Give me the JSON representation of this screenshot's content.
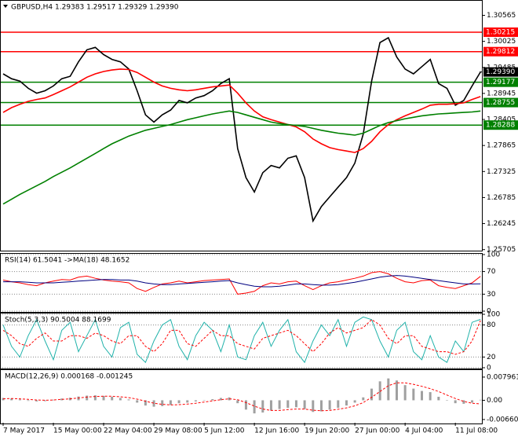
{
  "chart_data": [
    {
      "type": "line",
      "title": "GBPUSD,H4  1.29383 1.29517 1.29329 1.29390",
      "categories": [
        "7 May 2017",
        null,
        null,
        null,
        null,
        null,
        "15 May 00:00",
        null,
        null,
        null,
        null,
        null,
        "22 May 04:00",
        null,
        null,
        null,
        null,
        null,
        "29 May 08:00",
        null,
        null,
        null,
        null,
        null,
        "5 Jun 12:00",
        null,
        null,
        null,
        null,
        null,
        "12 Jun 16:00",
        null,
        null,
        null,
        null,
        null,
        "19 Jun 20:00",
        null,
        null,
        null,
        null,
        null,
        "27 Jun 00:00",
        null,
        null,
        null,
        null,
        null,
        "4 Jul 04:00",
        null,
        null,
        null,
        null,
        null,
        "11 Jul 08:00",
        null,
        null,
        null
      ],
      "ylim": [
        1.257,
        1.3085
      ],
      "yticks": [
        1.30565,
        1.30025,
        1.29485,
        1.28945,
        1.28405,
        1.27865,
        1.27325,
        1.26785,
        1.26245,
        1.25705
      ],
      "grid": false,
      "levels": [
        {
          "value": 1.30215,
          "color": "#ff0000"
        },
        {
          "value": 1.29812,
          "color": "#ff0000"
        },
        {
          "value": 1.29177,
          "color": "#008000"
        },
        {
          "value": 1.28755,
          "color": "#008000"
        },
        {
          "value": 1.28288,
          "color": "#008000"
        }
      ],
      "last": {
        "value": 1.2939,
        "label": "1.29390"
      },
      "series": [
        {
          "color": "#000000",
          "values": [
            1.2935,
            1.2925,
            1.292,
            1.2905,
            1.2895,
            1.29,
            1.291,
            1.2925,
            1.293,
            1.296,
            1.2985,
            1.299,
            1.2975,
            1.2965,
            1.296,
            1.2945,
            1.29,
            1.285,
            1.2835,
            1.285,
            1.286,
            1.288,
            1.2875,
            1.2885,
            1.289,
            1.29,
            1.2915,
            1.2925,
            1.278,
            1.272,
            1.269,
            1.273,
            1.2745,
            1.274,
            1.276,
            1.2765,
            1.272,
            1.263,
            1.266,
            1.268,
            1.27,
            1.272,
            1.275,
            1.281,
            1.292,
            1.3,
            1.301,
            1.297,
            1.2945,
            1.2935,
            1.295,
            1.2965,
            1.2915,
            1.2905,
            1.287,
            1.288,
            1.291,
            1.2939
          ]
        },
        {
          "color": "#ff0000",
          "values": [
            1.2855,
            1.2865,
            1.2872,
            1.2878,
            1.2882,
            1.2885,
            1.2892,
            1.29,
            1.2908,
            1.2918,
            1.2928,
            1.2935,
            1.294,
            1.2943,
            1.2945,
            1.2944,
            1.2938,
            1.2928,
            1.2918,
            1.291,
            1.2905,
            1.2902,
            1.29,
            1.2902,
            1.2905,
            1.2908,
            1.291,
            1.2912,
            1.2895,
            1.2875,
            1.2858,
            1.2846,
            1.284,
            1.2835,
            1.283,
            1.2825,
            1.2815,
            1.28,
            1.279,
            1.2782,
            1.2778,
            1.2775,
            1.2772,
            1.278,
            1.2795,
            1.2815,
            1.283,
            1.284,
            1.2848,
            1.2855,
            1.2862,
            1.287,
            1.2872,
            1.2872,
            1.2873,
            1.2875,
            1.2882,
            1.2888
          ]
        },
        {
          "color": "#008000",
          "values": [
            1.2665,
            1.2675,
            1.2685,
            1.2694,
            1.2703,
            1.2712,
            1.2722,
            1.2731,
            1.274,
            1.275,
            1.276,
            1.277,
            1.278,
            1.279,
            1.2798,
            1.2806,
            1.2812,
            1.2818,
            1.2822,
            1.2826,
            1.283,
            1.2835,
            1.284,
            1.2844,
            1.2848,
            1.2852,
            1.2855,
            1.2858,
            1.2855,
            1.285,
            1.2845,
            1.284,
            1.2835,
            1.2832,
            1.283,
            1.2828,
            1.2826,
            1.2822,
            1.2818,
            1.2815,
            1.2812,
            1.281,
            1.2808,
            1.2812,
            1.282,
            1.2828,
            1.2834,
            1.2838,
            1.2842,
            1.2845,
            1.2848,
            1.285,
            1.2852,
            1.2853,
            1.2854,
            1.2855,
            1.2856,
            1.2858
          ]
        }
      ]
    },
    {
      "type": "line",
      "title": "RSI(14) 61.5041 ->MA(18) 48.1652",
      "ylim": [
        0,
        100
      ],
      "yticks": [
        100,
        70,
        30,
        0
      ],
      "grid": true,
      "series": [
        {
          "color": "#ff0000",
          "values": [
            55,
            52,
            50,
            47,
            45,
            50,
            53,
            56,
            55,
            60,
            62,
            58,
            55,
            53,
            52,
            50,
            40,
            35,
            42,
            48,
            50,
            53,
            50,
            52,
            54,
            55,
            56,
            57,
            30,
            32,
            35,
            45,
            50,
            48,
            52,
            53,
            45,
            38,
            45,
            50,
            52,
            55,
            58,
            62,
            68,
            70,
            66,
            58,
            52,
            50,
            54,
            55,
            45,
            42,
            40,
            45,
            50,
            61.5
          ]
        },
        {
          "color": "#000080",
          "values": [
            52,
            52,
            52,
            51,
            50,
            50,
            50,
            51,
            52,
            53,
            54,
            55,
            56,
            56,
            55,
            55,
            53,
            50,
            48,
            47,
            47,
            48,
            49,
            50,
            51,
            52,
            53,
            54,
            50,
            47,
            44,
            43,
            43,
            44,
            46,
            48,
            48,
            47,
            46,
            46,
            47,
            49,
            51,
            54,
            57,
            60,
            62,
            63,
            62,
            60,
            58,
            56,
            54,
            52,
            50,
            48,
            48,
            48.2
          ]
        }
      ]
    },
    {
      "type": "line",
      "title": "Stoch(5,3,3) 90.5004 88.1699",
      "ylim": [
        0,
        100
      ],
      "yticks": [
        100,
        80,
        20,
        0
      ],
      "grid": true,
      "series": [
        {
          "color": "#20b2aa",
          "values": [
            80,
            40,
            20,
            60,
            90,
            50,
            15,
            70,
            85,
            30,
            60,
            90,
            40,
            20,
            75,
            85,
            25,
            10,
            50,
            80,
            90,
            40,
            15,
            60,
            85,
            70,
            30,
            80,
            20,
            15,
            60,
            85,
            40,
            70,
            90,
            30,
            10,
            50,
            80,
            60,
            90,
            40,
            85,
            95,
            90,
            50,
            20,
            70,
            85,
            30,
            15,
            60,
            20,
            10,
            50,
            30,
            85,
            90.5
          ]
        },
        {
          "color": "#ff0000",
          "dash": true,
          "values": [
            70,
            60,
            45,
            40,
            55,
            65,
            50,
            50,
            60,
            60,
            55,
            65,
            60,
            50,
            45,
            60,
            60,
            40,
            30,
            45,
            70,
            70,
            45,
            40,
            55,
            70,
            60,
            60,
            45,
            40,
            35,
            55,
            60,
            65,
            70,
            60,
            45,
            30,
            45,
            65,
            75,
            65,
            70,
            75,
            90,
            80,
            55,
            45,
            60,
            60,
            40,
            35,
            30,
            30,
            25,
            30,
            50,
            88.2
          ]
        }
      ]
    },
    {
      "type": "bar",
      "title": "MACD(12,26,9) 0.000168 -0.001245",
      "ylim": [
        -0.0077,
        0.0101
      ],
      "yticks": [
        0.007961,
        {
          "value": 0,
          "label": "0.00"
        },
        -0.006601
      ],
      "grid": false,
      "series": [
        {
          "color": "#a0a0a0",
          "type": "bar",
          "values": [
            0.0008,
            0.0006,
            0.0003,
            -0.0002,
            -0.0004,
            -0.0003,
            0.0002,
            0.0006,
            0.0009,
            0.0013,
            0.0016,
            0.0017,
            0.0015,
            0.0012,
            0.0008,
            0.0003,
            -0.0008,
            -0.0018,
            -0.0022,
            -0.002,
            -0.0016,
            -0.001,
            -0.0008,
            -0.0004,
            0,
            0.0004,
            0.0008,
            0.001,
            -0.001,
            -0.0032,
            -0.0045,
            -0.0042,
            -0.0035,
            -0.003,
            -0.0026,
            -0.0024,
            -0.003,
            -0.004,
            -0.0038,
            -0.0032,
            -0.0026,
            -0.0018,
            -0.0008,
            0.001,
            0.004,
            0.0065,
            0.0075,
            0.0068,
            0.0052,
            0.004,
            0.0032,
            0.0028,
            0.0012,
            0,
            -0.001,
            -0.0012,
            -0.0008,
            0.000168
          ]
        },
        {
          "color": "#ff0000",
          "type": "line",
          "dash": true,
          "values": [
            0.0005,
            0.0006,
            0.0005,
            0.0003,
            0.0001,
            0,
            0.0001,
            0.0003,
            0.0005,
            0.0008,
            0.0011,
            0.0013,
            0.0014,
            0.0014,
            0.0012,
            0.0009,
            0.0004,
            -0.0003,
            -0.001,
            -0.0014,
            -0.0016,
            -0.0015,
            -0.0013,
            -0.001,
            -0.0006,
            -0.0002,
            0.0002,
            0.0005,
            0.0002,
            -0.0008,
            -0.002,
            -0.003,
            -0.0035,
            -0.0035,
            -0.0032,
            -0.003,
            -0.003,
            -0.0034,
            -0.0036,
            -0.0035,
            -0.0031,
            -0.0026,
            -0.0019,
            -0.0008,
            0.001,
            0.003,
            0.005,
            0.006,
            0.006,
            0.0055,
            0.0048,
            0.004,
            0.003,
            0.0018,
            0.0006,
            -0.0004,
            -0.001,
            -0.001245
          ]
        }
      ]
    }
  ]
}
